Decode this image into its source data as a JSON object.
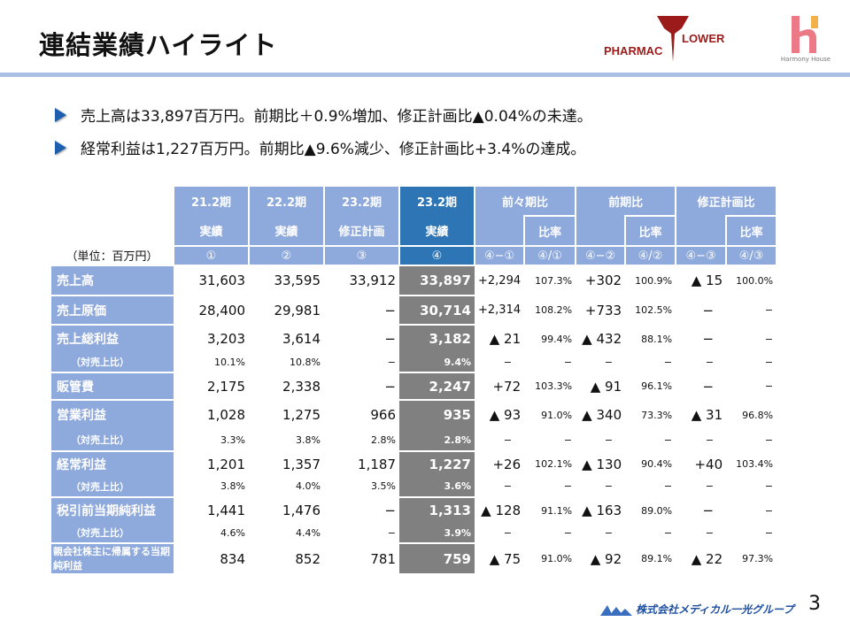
{
  "title": "連結業績ハイライト",
  "logos": {
    "pharmacy_flower": "PHARMAC FLOWER",
    "harmony_house": "Harmony House",
    "corp": "株式会社メディカル一光グループ"
  },
  "bullets": [
    "売上高は33,897百万円。前期比＋0.9%増加、修正計画比▲0.04%の未達。",
    "経常利益は1,227百万円。前期比▲9.6%減少、修正計画比+3.4%の達成。"
  ],
  "table": {
    "unit": "（単位：百万円）",
    "periods": [
      {
        "p": "21.2期",
        "k": "実績",
        "n": "①"
      },
      {
        "p": "22.2期",
        "k": "実績",
        "n": "②"
      },
      {
        "p": "23.2期",
        "k": "修正計画",
        "n": "③"
      },
      {
        "p": "23.2期",
        "k": "実績",
        "n": "④"
      }
    ],
    "comparisons": [
      {
        "label": "前々期比",
        "ratio": "比率",
        "n1": "④−①",
        "n2": "④/①"
      },
      {
        "label": "前期比",
        "ratio": "比率",
        "n1": "④−②",
        "n2": "④/②"
      },
      {
        "label": "修正計画比",
        "ratio": "比率",
        "n1": "④−③",
        "n2": "④/③"
      }
    ],
    "rows": [
      {
        "label": "売上高",
        "sub": false,
        "v": [
          "31,603",
          "33,595",
          "33,912",
          "33,897",
          "+2,294",
          "107.3%",
          "+302",
          "100.9%",
          "▲ 15",
          "100.0%"
        ]
      },
      {
        "label": "売上原価",
        "sub": false,
        "v": [
          "28,400",
          "29,981",
          "−",
          "30,714",
          "+2,314",
          "108.2%",
          "+733",
          "102.5%",
          "−",
          "−"
        ]
      },
      {
        "label": "売上総利益",
        "sub": false,
        "v": [
          "3,203",
          "3,614",
          "−",
          "3,182",
          "▲ 21",
          "99.4%",
          "▲ 432",
          "88.1%",
          "−",
          "−"
        ]
      },
      {
        "label": "（対売上比）",
        "sub": true,
        "v": [
          "10.1%",
          "10.8%",
          "−",
          "9.4%",
          "−",
          "−",
          "−",
          "−",
          "−",
          "−"
        ]
      },
      {
        "label": "販管費",
        "sub": false,
        "v": [
          "2,175",
          "2,338",
          "−",
          "2,247",
          "+72",
          "103.3%",
          "▲ 91",
          "96.1%",
          "−",
          "−"
        ]
      },
      {
        "label": "営業利益",
        "sub": false,
        "v": [
          "1,028",
          "1,275",
          "966",
          "935",
          "▲ 93",
          "91.0%",
          "▲ 340",
          "73.3%",
          "▲ 31",
          "96.8%"
        ]
      },
      {
        "label": "（対売上比）",
        "sub": true,
        "v": [
          "3.3%",
          "3.8%",
          "2.8%",
          "2.8%",
          "−",
          "−",
          "−",
          "−",
          "−",
          "−"
        ]
      },
      {
        "label": "経常利益",
        "sub": false,
        "v": [
          "1,201",
          "1,357",
          "1,187",
          "1,227",
          "+26",
          "102.1%",
          "▲ 130",
          "90.4%",
          "+40",
          "103.4%"
        ]
      },
      {
        "label": "（対売上比）",
        "sub": true,
        "v": [
          "3.8%",
          "4.0%",
          "3.5%",
          "3.6%",
          "−",
          "−",
          "−",
          "−",
          "−",
          "−"
        ]
      },
      {
        "label": "税引前当期純利益",
        "sub": false,
        "v": [
          "1,441",
          "1,476",
          "−",
          "1,313",
          "▲ 128",
          "91.1%",
          "▲ 163",
          "89.0%",
          "−",
          "−"
        ]
      },
      {
        "label": "（対売上比）",
        "sub": true,
        "v": [
          "4.6%",
          "4.4%",
          "−",
          "3.9%",
          "−",
          "−",
          "−",
          "−",
          "−",
          "−"
        ]
      },
      {
        "label": "親会社株主に帰属する当期純利益",
        "sub": false,
        "v": [
          "834",
          "852",
          "781",
          "759",
          "▲ 75",
          "91.0%",
          "▲ 92",
          "89.1%",
          "▲ 22",
          "97.3%"
        ]
      }
    ]
  },
  "page_number": "3",
  "colors": {
    "header_blue": "#8EA9DB",
    "current_blue": "#2E75B6",
    "current_gray": "#808080",
    "rule": "#A9BFE6"
  }
}
